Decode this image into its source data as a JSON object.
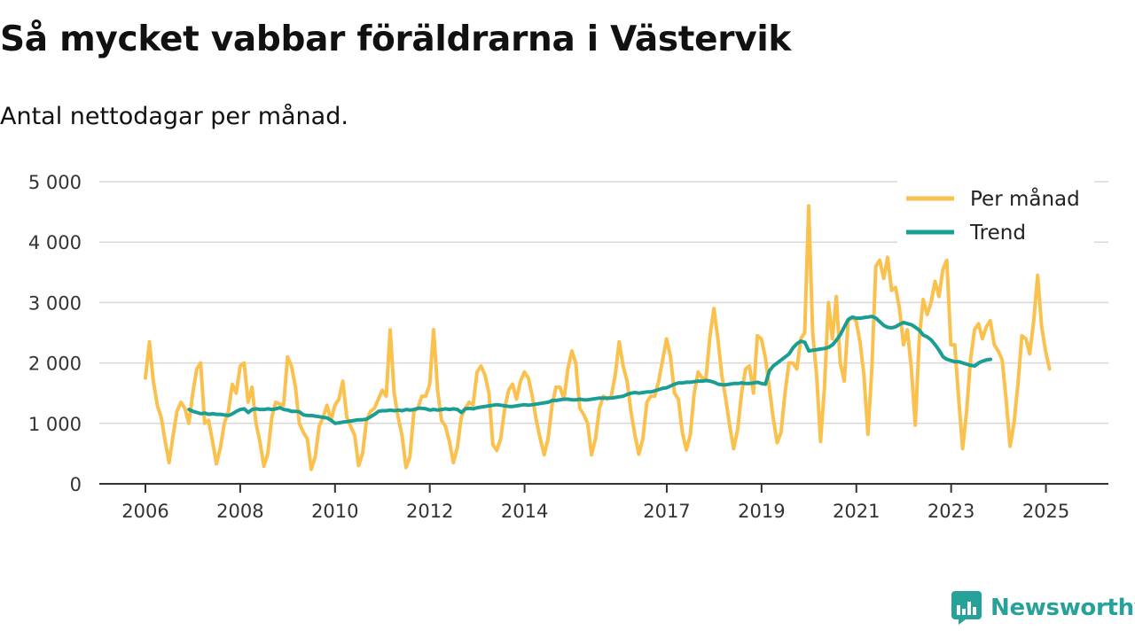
{
  "title": "Så mycket vabbar föräldrarna i Västervik",
  "subtitle": "Antal nettodagar per månad.",
  "brand": "Newsworthy",
  "colors": {
    "monthly": "#fbc14e",
    "trend": "#1a9e94",
    "grid": "#d9d9d9",
    "axis": "#333333",
    "brand": "#26a29a"
  },
  "chart_data": {
    "type": "line",
    "title": "Så mycket vabbar föräldrarna i Västervik",
    "subtitle": "Antal nettodagar per månad.",
    "xlabel": "",
    "ylabel": "",
    "xlim": [
      2006,
      2026.3
    ],
    "ylim": [
      0,
      5000
    ],
    "y_ticks": [
      0,
      1000,
      2000,
      3000,
      4000,
      5000
    ],
    "y_tick_labels": [
      "0",
      "1 000",
      "2 000",
      "3 000",
      "4 000",
      "5 000"
    ],
    "x_ticks": [
      2006,
      2008,
      2010,
      2012,
      2014,
      2017,
      2019,
      2021,
      2023,
      2025
    ],
    "x_tick_labels": [
      "2006",
      "2008",
      "2010",
      "2012",
      "2014",
      "2017",
      "2019",
      "2021",
      "2023",
      "2025"
    ],
    "grid": "horizontal",
    "legend_position": "top-right",
    "series": [
      {
        "name": "Per månad",
        "x_start": 2006.0,
        "x_step": 0.0833,
        "values": [
          1750,
          2350,
          1700,
          1300,
          1100,
          700,
          350,
          800,
          1200,
          1350,
          1250,
          1000,
          1500,
          1900,
          2000,
          1000,
          1050,
          700,
          330,
          600,
          1000,
          1200,
          1650,
          1500,
          1950,
          2000,
          1350,
          1600,
          1000,
          700,
          290,
          500,
          1100,
          1350,
          1320,
          1300,
          2100,
          1950,
          1600,
          1000,
          850,
          750,
          240,
          450,
          950,
          1100,
          1300,
          1050,
          1300,
          1400,
          1700,
          1100,
          950,
          800,
          300,
          500,
          1050,
          1200,
          1250,
          1400,
          1550,
          1450,
          2550,
          1500,
          1100,
          800,
          270,
          450,
          1200,
          1250,
          1450,
          1450,
          1650,
          2550,
          1550,
          1050,
          950,
          700,
          350,
          600,
          1100,
          1250,
          1350,
          1300,
          1850,
          1950,
          1800,
          1500,
          650,
          550,
          750,
          1250,
          1550,
          1650,
          1400,
          1700,
          1850,
          1750,
          1450,
          1050,
          750,
          480,
          750,
          1300,
          1600,
          1600,
          1400,
          1900,
          2200,
          2000,
          1250,
          1150,
          1000,
          480,
          750,
          1250,
          1450,
          1400,
          1450,
          1800,
          2350,
          1950,
          1700,
          1200,
          800,
          490,
          750,
          1350,
          1450,
          1450,
          1700,
          2050,
          2400,
          2100,
          1500,
          1400,
          850,
          560,
          800,
          1500,
          1850,
          1750,
          1750,
          2450,
          2900,
          2400,
          1800,
          1400,
          950,
          580,
          900,
          1500,
          1900,
          1950,
          1500,
          2450,
          2400,
          2100,
          1600,
          1100,
          680,
          850,
          1500,
          2000,
          2000,
          1900,
          2400,
          2500,
          4600,
          2500,
          1800,
          700,
          1600,
          3000,
          2400,
          3100,
          2000,
          1700,
          2700,
          2750,
          2700,
          2350,
          1800,
          820,
          1900,
          3600,
          3700,
          3400,
          3750,
          3200,
          3250,
          2900,
          2300,
          2550,
          1900,
          970,
          2400,
          3050,
          2800,
          3000,
          3350,
          3100,
          3550,
          3700,
          2300,
          2300,
          1400,
          580,
          1200,
          2050,
          2550,
          2650,
          2400,
          2600,
          2700,
          2300,
          2200,
          2050,
          1400,
          620,
          1000,
          1650,
          2450,
          2400,
          2150,
          2700,
          3450,
          2600,
          2200,
          1900
        ]
      },
      {
        "name": "Trend",
        "x_start": 2006.92,
        "x_step": 0.0833,
        "values": [
          1230,
          1200,
          1180,
          1160,
          1170,
          1150,
          1160,
          1150,
          1150,
          1140,
          1130,
          1160,
          1200,
          1230,
          1240,
          1180,
          1230,
          1240,
          1230,
          1230,
          1240,
          1230,
          1240,
          1260,
          1230,
          1220,
          1200,
          1200,
          1190,
          1140,
          1130,
          1130,
          1120,
          1110,
          1100,
          1090,
          1050,
          1000,
          1010,
          1020,
          1030,
          1040,
          1050,
          1060,
          1060,
          1070,
          1110,
          1150,
          1200,
          1210,
          1210,
          1220,
          1210,
          1220,
          1210,
          1230,
          1220,
          1230,
          1250,
          1250,
          1240,
          1220,
          1230,
          1220,
          1230,
          1240,
          1230,
          1240,
          1230,
          1180,
          1240,
          1250,
          1240,
          1260,
          1270,
          1280,
          1290,
          1300,
          1310,
          1300,
          1290,
          1280,
          1280,
          1290,
          1300,
          1310,
          1300,
          1310,
          1320,
          1330,
          1340,
          1350,
          1380,
          1380,
          1390,
          1400,
          1400,
          1390,
          1390,
          1400,
          1390,
          1390,
          1400,
          1410,
          1420,
          1420,
          1420,
          1420,
          1430,
          1440,
          1450,
          1480,
          1500,
          1510,
          1500,
          1510,
          1520,
          1520,
          1540,
          1560,
          1580,
          1590,
          1620,
          1650,
          1670,
          1670,
          1680,
          1680,
          1690,
          1700,
          1700,
          1710,
          1700,
          1680,
          1650,
          1640,
          1640,
          1650,
          1660,
          1660,
          1670,
          1660,
          1660,
          1670,
          1680,
          1660,
          1650,
          1870,
          1950,
          2000,
          2050,
          2100,
          2150,
          2250,
          2320,
          2360,
          2340,
          2200,
          2210,
          2220,
          2230,
          2240,
          2260,
          2300,
          2380,
          2470,
          2600,
          2720,
          2760,
          2740,
          2740,
          2750,
          2760,
          2770,
          2740,
          2680,
          2620,
          2590,
          2580,
          2600,
          2640,
          2670,
          2650,
          2630,
          2590,
          2540,
          2460,
          2430,
          2380,
          2300,
          2210,
          2100,
          2060,
          2040,
          2020,
          2020,
          2000,
          1980,
          1960,
          1950,
          2000,
          2030,
          2050,
          2060
        ]
      }
    ]
  }
}
